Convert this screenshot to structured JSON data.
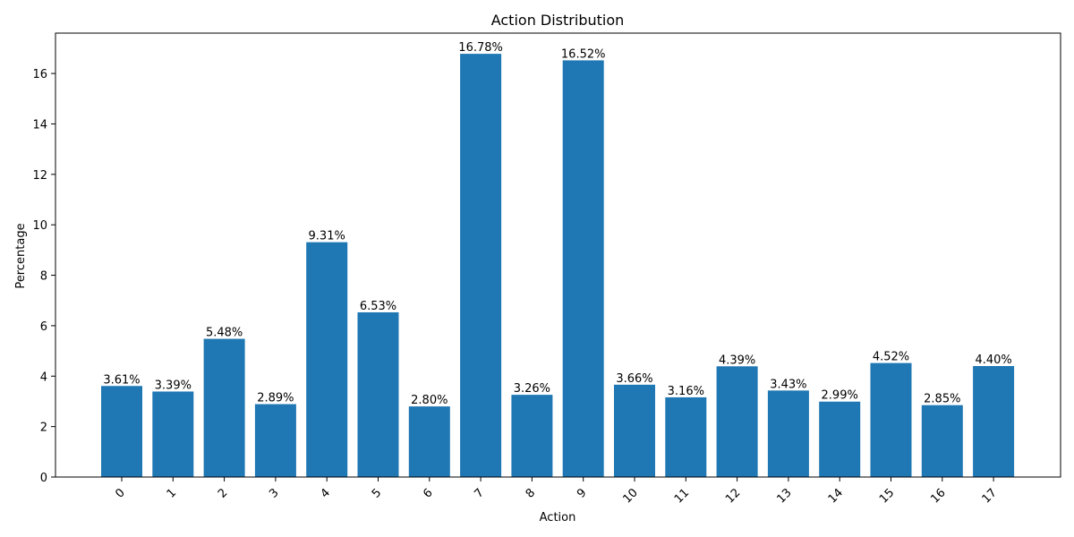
{
  "chart_data": {
    "type": "bar",
    "title": "Action Distribution",
    "xlabel": "Action",
    "ylabel": "Percentage",
    "categories": [
      "0",
      "1",
      "2",
      "3",
      "4",
      "5",
      "6",
      "7",
      "8",
      "9",
      "10",
      "11",
      "12",
      "13",
      "14",
      "15",
      "16",
      "17"
    ],
    "values": [
      3.61,
      3.39,
      5.48,
      2.89,
      9.31,
      6.53,
      2.8,
      16.78,
      3.26,
      16.52,
      3.66,
      3.16,
      4.39,
      3.43,
      2.99,
      4.52,
      2.85,
      4.4
    ],
    "value_labels": [
      "3.61%",
      "3.39%",
      "5.48%",
      "2.89%",
      "9.31%",
      "6.53%",
      "2.80%",
      "16.78%",
      "3.26%",
      "16.52%",
      "3.66%",
      "3.16%",
      "4.39%",
      "3.43%",
      "2.99%",
      "4.52%",
      "2.85%",
      "4.40%"
    ],
    "yticks": [
      "0",
      "2",
      "4",
      "6",
      "8",
      "10",
      "12",
      "14",
      "16"
    ],
    "ylim": [
      0,
      17.6
    ],
    "grid": false,
    "x_tick_rotation": "45°",
    "bar_color": "#1f77b4"
  }
}
